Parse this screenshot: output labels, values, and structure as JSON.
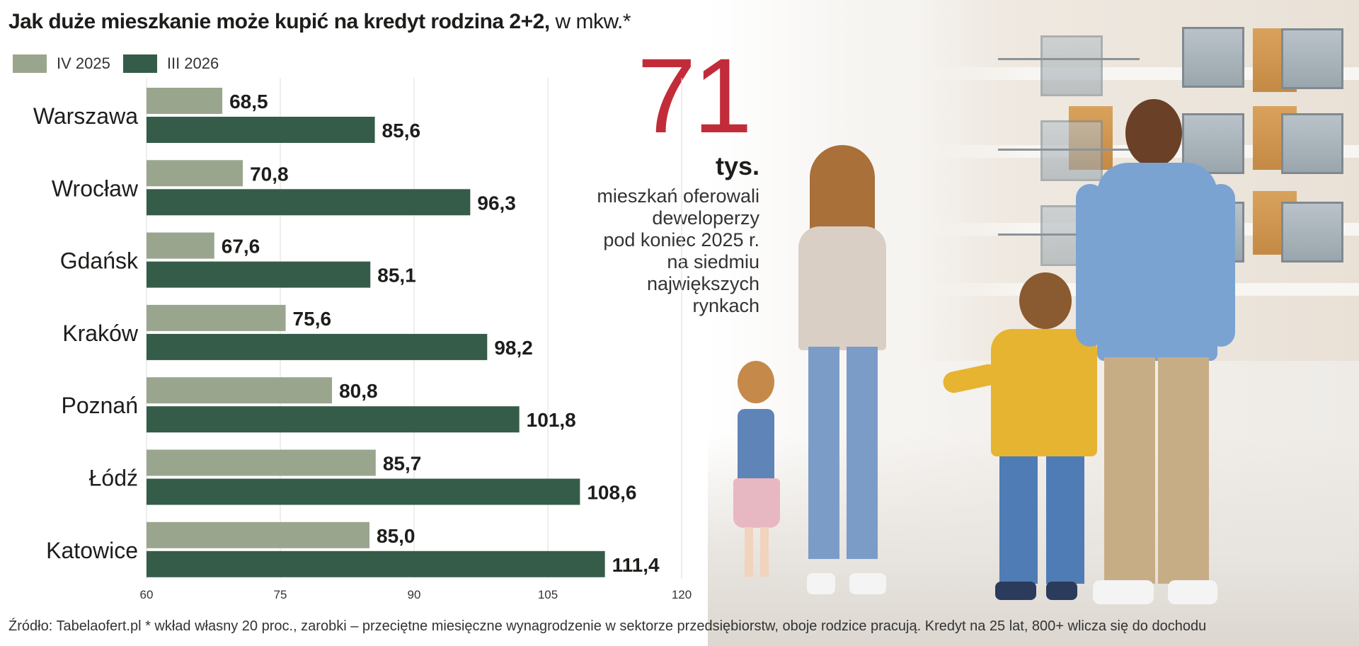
{
  "title": {
    "bold": "Jak duże mieszkanie może kupić na kredyt rodzina 2+2,",
    "light": " w mkw.*"
  },
  "colors": {
    "series1": "#9aa58e",
    "series2": "#355c48",
    "accent": "#c22c3a"
  },
  "highlight": {
    "number": "71",
    "unit": "tys.",
    "lines": [
      "mieszkań oferowali",
      "deweloperzy",
      "pod koniec 2025 r.",
      "na siedmiu",
      "największych",
      "rynkach"
    ]
  },
  "source": "Źródło: Tabelaofert.pl * wkład własny 20 proc., zarobki – przeciętne miesięczne wynagrodzenie w sektorze przedsiębiorstw, oboje rodzice pracują. Kredyt na 25 lat, 800+ wlicza się do dochodu",
  "chart_data": {
    "type": "bar",
    "orientation": "horizontal",
    "categories": [
      "Warszawa",
      "Wrocław",
      "Gdańsk",
      "Kraków",
      "Poznań",
      "Łódź",
      "Katowice"
    ],
    "series": [
      {
        "name": "IV 2025",
        "values": [
          68.5,
          70.8,
          67.6,
          75.6,
          80.8,
          85.7,
          85.0
        ],
        "labels": [
          "68,5",
          "70,8",
          "67,6",
          "75,6",
          "80,8",
          "85,7",
          "85,0"
        ]
      },
      {
        "name": "III 2026",
        "values": [
          85.6,
          96.3,
          85.1,
          98.2,
          101.8,
          108.6,
          111.4
        ],
        "labels": [
          "85,6",
          "96,3",
          "85,1",
          "98,2",
          "101,8",
          "108,6",
          "111,4"
        ]
      }
    ],
    "xlim": [
      60,
      120
    ],
    "xticks": [
      60,
      75,
      90,
      105,
      120
    ],
    "grid": true,
    "legend": "top-left"
  }
}
